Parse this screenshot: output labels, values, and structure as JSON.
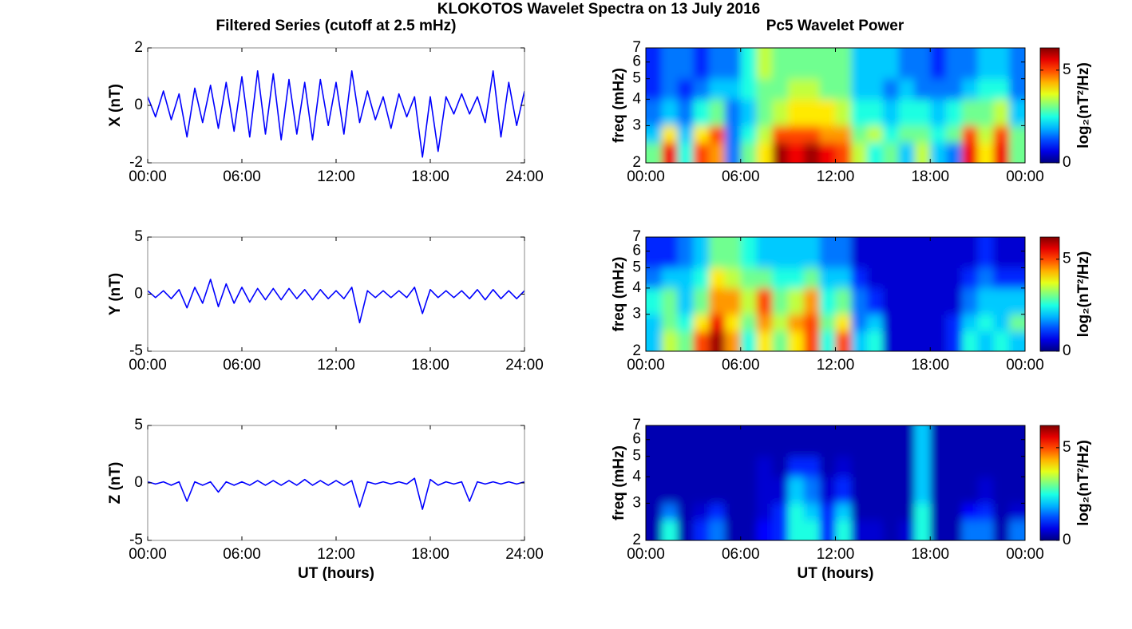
{
  "title": "KLOKOTOS Wavelet Spectra on 13 July 2016",
  "column_titles": [
    "Filtered Series (cutoff at 2.5 mHz)",
    "Pc5 Wavelet Power"
  ],
  "chart_data": [
    {
      "type": "line",
      "ylabel": "X (nT)",
      "color": "#0000ff",
      "xlim": [
        0,
        24
      ],
      "ylim": [
        -2,
        2
      ],
      "yticks": [
        -2,
        0,
        2
      ],
      "xticks": [
        {
          "value": 0,
          "label": "00:00"
        },
        {
          "value": 6,
          "label": "06:00"
        },
        {
          "value": 12,
          "label": "12:00"
        },
        {
          "value": 18,
          "label": "18:00"
        },
        {
          "value": 24,
          "label": "24:00"
        }
      ],
      "x": [
        0,
        0.5,
        1,
        1.5,
        2,
        2.5,
        3,
        3.5,
        4,
        4.5,
        5,
        5.5,
        6,
        6.5,
        7,
        7.5,
        8,
        8.5,
        9,
        9.5,
        10,
        10.5,
        11,
        11.5,
        12,
        12.5,
        13,
        13.5,
        14,
        14.5,
        15,
        15.5,
        16,
        16.5,
        17,
        17.5,
        18,
        18.5,
        19,
        19.5,
        20,
        20.5,
        21,
        21.5,
        22,
        22.5,
        23,
        23.5,
        24
      ],
      "values": [
        0.3,
        -0.4,
        0.5,
        -0.5,
        0.4,
        -1.1,
        0.6,
        -0.6,
        0.7,
        -0.8,
        0.8,
        -0.9,
        1.0,
        -1.1,
        1.2,
        -1.0,
        1.1,
        -1.2,
        0.9,
        -1.0,
        0.8,
        -1.2,
        0.9,
        -0.7,
        0.8,
        -1.0,
        1.2,
        -0.6,
        0.5,
        -0.5,
        0.3,
        -0.8,
        0.4,
        -0.4,
        0.3,
        -1.8,
        0.3,
        -1.6,
        0.3,
        -0.3,
        0.4,
        -0.3,
        0.3,
        -0.6,
        1.2,
        -1.1,
        0.8,
        -0.7,
        0.5
      ]
    },
    {
      "type": "heatmap",
      "ylabel": "freq (mHz)",
      "colorbar_label": "log₂(nT²/Hz)",
      "colormap": "jet",
      "log_y": true,
      "xlim": [
        0,
        24
      ],
      "ylim": [
        2,
        7
      ],
      "yticks": [
        2,
        3,
        4,
        5,
        6,
        7
      ],
      "zlim": [
        0,
        6.2
      ],
      "zticks": [
        0,
        5
      ],
      "xticks": [
        {
          "value": 0,
          "label": "00:00"
        },
        {
          "value": 6,
          "label": "06:00"
        },
        {
          "value": 12,
          "label": "12:00"
        },
        {
          "value": 18,
          "label": "18:00"
        },
        {
          "value": 24,
          "label": "00:00"
        }
      ],
      "xbins": [
        0,
        1,
        2,
        3,
        4,
        5,
        6,
        7,
        8,
        9,
        10,
        11,
        12,
        13,
        14,
        15,
        16,
        17,
        18,
        19,
        20,
        21,
        22,
        23,
        24
      ],
      "ybins": [
        2,
        2.5,
        3,
        4,
        5,
        7
      ],
      "z": [
        [
          3,
          5.5,
          2.5,
          5,
          4.5,
          1.5,
          3,
          4,
          6,
          5.5,
          6,
          5.5,
          5,
          3.5,
          2.5,
          3,
          2,
          3.5,
          2,
          1.5,
          5.5,
          4,
          5.5,
          3
        ],
        [
          2,
          4,
          2,
          4,
          5,
          1.5,
          2.5,
          3.5,
          5,
          5,
          5,
          4.5,
          4.5,
          3,
          3.5,
          2.5,
          3,
          3,
          2.5,
          3,
          5,
          3.5,
          5,
          3
        ],
        [
          1.5,
          2,
          1.5,
          2.5,
          3,
          1.5,
          2,
          3,
          3.5,
          4,
          4,
          4,
          3.5,
          2.5,
          2.5,
          2,
          2.5,
          2.5,
          2,
          2.5,
          3,
          3,
          3.5,
          2
        ],
        [
          1,
          1.5,
          1,
          1.5,
          2,
          2,
          2.5,
          3,
          3,
          3.5,
          3.5,
          3,
          3,
          2,
          2,
          1.5,
          2,
          1.5,
          1.5,
          1.5,
          2,
          2.5,
          2.5,
          1.5
        ],
        [
          1,
          1.5,
          1.5,
          1,
          1.5,
          1.5,
          2.5,
          3.5,
          3,
          3,
          3,
          3,
          3,
          2,
          2,
          2,
          1.5,
          1.5,
          1,
          1.5,
          1.5,
          2,
          2,
          1.5
        ]
      ]
    },
    {
      "type": "line",
      "ylabel": "Y (nT)",
      "color": "#0000ff",
      "xlim": [
        0,
        24
      ],
      "ylim": [
        -5,
        5
      ],
      "yticks": [
        -5,
        0,
        5
      ],
      "xticks": [
        {
          "value": 0,
          "label": "00:00"
        },
        {
          "value": 6,
          "label": "06:00"
        },
        {
          "value": 12,
          "label": "12:00"
        },
        {
          "value": 18,
          "label": "18:00"
        },
        {
          "value": 24,
          "label": "24:00"
        }
      ],
      "x": [
        0,
        0.5,
        1,
        1.5,
        2,
        2.5,
        3,
        3.5,
        4,
        4.5,
        5,
        5.5,
        6,
        6.5,
        7,
        7.5,
        8,
        8.5,
        9,
        9.5,
        10,
        10.5,
        11,
        11.5,
        12,
        12.5,
        13,
        13.5,
        14,
        14.5,
        15,
        15.5,
        16,
        16.5,
        17,
        17.5,
        18,
        18.5,
        19,
        19.5,
        20,
        20.5,
        21,
        21.5,
        22,
        22.5,
        23,
        23.5,
        24
      ],
      "values": [
        0.3,
        -0.3,
        0.3,
        -0.4,
        0.4,
        -1.2,
        0.6,
        -0.8,
        1.3,
        -1.1,
        0.9,
        -0.8,
        0.6,
        -0.7,
        0.5,
        -0.5,
        0.5,
        -0.5,
        0.5,
        -0.4,
        0.4,
        -0.5,
        0.4,
        -0.4,
        0.3,
        -0.4,
        0.6,
        -2.5,
        0.3,
        -0.3,
        0.3,
        -0.3,
        0.3,
        -0.3,
        0.6,
        -1.7,
        0.4,
        -0.3,
        0.3,
        -0.3,
        0.3,
        -0.4,
        0.4,
        -0.5,
        0.4,
        -0.4,
        0.3,
        -0.4,
        0.3
      ]
    },
    {
      "type": "heatmap",
      "ylabel": "freq (mHz)",
      "colorbar_label": "log₂(nT²/Hz)",
      "colormap": "jet",
      "log_y": true,
      "xlim": [
        0,
        24
      ],
      "ylim": [
        2,
        7
      ],
      "yticks": [
        2,
        3,
        4,
        5,
        6,
        7
      ],
      "zlim": [
        0,
        6.2
      ],
      "zticks": [
        0,
        5
      ],
      "xticks": [
        {
          "value": 0,
          "label": "00:00"
        },
        {
          "value": 6,
          "label": "06:00"
        },
        {
          "value": 12,
          "label": "12:00"
        },
        {
          "value": 18,
          "label": "18:00"
        },
        {
          "value": 24,
          "label": "00:00"
        }
      ],
      "xbins": [
        0,
        1,
        2,
        3,
        4,
        5,
        6,
        7,
        8,
        9,
        10,
        11,
        12,
        13,
        14,
        15,
        16,
        17,
        18,
        19,
        20,
        21,
        22,
        23,
        24
      ],
      "ybins": [
        2,
        2.5,
        3,
        4,
        5,
        7
      ],
      "z": [
        [
          2,
          3.5,
          3,
          5,
          6,
          4.5,
          2.5,
          4,
          3,
          4,
          5,
          2.5,
          5,
          2,
          2.5,
          0.5,
          0.5,
          0.5,
          0.5,
          1,
          2.5,
          2,
          2.5,
          2
        ],
        [
          2,
          3,
          2.5,
          4,
          5.5,
          4,
          3,
          4.5,
          3.5,
          4.5,
          5,
          3,
          4,
          1.5,
          2,
          0.5,
          0.5,
          0.5,
          0.5,
          1,
          2,
          2.5,
          2,
          3
        ],
        [
          2.5,
          3,
          2,
          3,
          4.5,
          4.5,
          3.5,
          5,
          3,
          3.5,
          4.5,
          2.5,
          3,
          1.5,
          1,
          0.5,
          0.5,
          0.5,
          0.5,
          0.5,
          1.5,
          2,
          2,
          2
        ],
        [
          1.5,
          2,
          2,
          2.5,
          4,
          3.5,
          3,
          3,
          2.5,
          2.5,
          3,
          2,
          2,
          1,
          0.5,
          0.5,
          0.5,
          0.5,
          0.5,
          0.5,
          1,
          1.5,
          1,
          1
        ],
        [
          1,
          1,
          1.5,
          2,
          3,
          3,
          2.5,
          2,
          2,
          2,
          2,
          1.5,
          1.5,
          0.5,
          0.5,
          0.5,
          0.5,
          0.5,
          0.5,
          0.5,
          0.5,
          1,
          0.5,
          0.5
        ]
      ]
    },
    {
      "type": "line",
      "ylabel": "Z (nT)",
      "xlabel": "UT (hours)",
      "color": "#0000ff",
      "xlim": [
        0,
        24
      ],
      "ylim": [
        -5,
        5
      ],
      "yticks": [
        -5,
        0,
        5
      ],
      "xticks": [
        {
          "value": 0,
          "label": "00:00"
        },
        {
          "value": 6,
          "label": "06:00"
        },
        {
          "value": 12,
          "label": "12:00"
        },
        {
          "value": 18,
          "label": "18:00"
        },
        {
          "value": 24,
          "label": "24:00"
        }
      ],
      "x": [
        0,
        0.5,
        1,
        1.5,
        2,
        2.5,
        3,
        3.5,
        4,
        4.5,
        5,
        5.5,
        6,
        6.5,
        7,
        7.5,
        8,
        8.5,
        9,
        9.5,
        10,
        10.5,
        11,
        11.5,
        12,
        12.5,
        13,
        13.5,
        14,
        14.5,
        15,
        15.5,
        16,
        16.5,
        17,
        17.5,
        18,
        18.5,
        19,
        19.5,
        20,
        20.5,
        21,
        21.5,
        22,
        22.5,
        23,
        23.5,
        24
      ],
      "values": [
        0.1,
        -0.1,
        0.1,
        -0.2,
        0.1,
        -1.6,
        0.1,
        -0.2,
        0.1,
        -0.8,
        0.1,
        -0.2,
        0.1,
        -0.2,
        0.2,
        -0.2,
        0.2,
        -0.2,
        0.2,
        -0.2,
        0.3,
        -0.2,
        0.2,
        -0.2,
        0.2,
        -0.2,
        0.2,
        -2.1,
        0.1,
        -0.1,
        0.1,
        -0.1,
        0.1,
        -0.1,
        0.4,
        -2.3,
        0.3,
        -0.2,
        0.1,
        -0.1,
        0.1,
        -1.6,
        0.1,
        -0.1,
        0.1,
        -0.1,
        0.1,
        -0.1,
        0.1
      ]
    },
    {
      "type": "heatmap",
      "ylabel": "freq (mHz)",
      "xlabel": "UT (hours)",
      "colorbar_label": "log₂(nT²/Hz)",
      "colormap": "jet",
      "log_y": true,
      "xlim": [
        0,
        24
      ],
      "ylim": [
        2,
        7
      ],
      "yticks": [
        2,
        3,
        4,
        5,
        6,
        7
      ],
      "zlim": [
        0,
        6.2
      ],
      "zticks": [
        0,
        5
      ],
      "xticks": [
        {
          "value": 0,
          "label": "00:00"
        },
        {
          "value": 6,
          "label": "06:00"
        },
        {
          "value": 12,
          "label": "12:00"
        },
        {
          "value": 18,
          "label": "18:00"
        },
        {
          "value": 24,
          "label": "00:00"
        }
      ],
      "xbins": [
        0,
        1,
        2,
        3,
        4,
        5,
        6,
        7,
        8,
        9,
        10,
        11,
        12,
        13,
        14,
        15,
        16,
        17,
        18,
        19,
        20,
        21,
        22,
        23,
        24
      ],
      "ybins": [
        2,
        2.5,
        3,
        4,
        5,
        7
      ],
      "z": [
        [
          0.3,
          2.5,
          0.3,
          1,
          1.5,
          0.3,
          0.3,
          0.8,
          1,
          2.5,
          2.5,
          1,
          2.5,
          0.5,
          0.5,
          0.3,
          0.5,
          2.5,
          0.3,
          0.3,
          1.5,
          1.5,
          0.3,
          1.5
        ],
        [
          0.3,
          1.5,
          0.3,
          0.5,
          1,
          0.3,
          0.3,
          0.5,
          1,
          2.5,
          2,
          1,
          2,
          0.3,
          0.3,
          0.3,
          0.3,
          2.5,
          0.3,
          0.3,
          0.8,
          1,
          0.3,
          0.5
        ],
        [
          0.3,
          0.3,
          0.3,
          0.3,
          0.3,
          0.3,
          0.3,
          0.5,
          0.5,
          2,
          1.5,
          0.5,
          1,
          0.3,
          0.3,
          0.3,
          0.3,
          2,
          0.3,
          0.3,
          0.3,
          0.5,
          0.3,
          0.3
        ],
        [
          0.3,
          0.3,
          0.3,
          0.3,
          0.3,
          0.3,
          0.3,
          0.5,
          0.3,
          1,
          1,
          0.3,
          0.5,
          0.3,
          0.3,
          0.3,
          0.3,
          2,
          0.3,
          0.3,
          0.3,
          0.3,
          0.3,
          0.3
        ],
        [
          0.3,
          0.3,
          0.3,
          0.3,
          0.3,
          0.3,
          0.3,
          0.3,
          0.3,
          0.3,
          0.3,
          0.3,
          0.3,
          0.3,
          0.3,
          0.3,
          0.3,
          2,
          0.3,
          0.3,
          0.3,
          0.3,
          0.3,
          0.3
        ]
      ]
    }
  ]
}
